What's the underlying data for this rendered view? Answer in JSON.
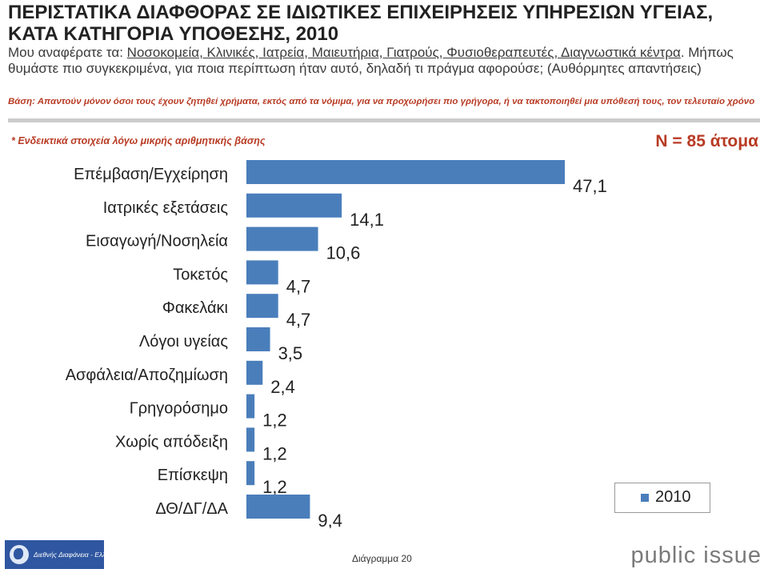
{
  "title": "ΠΕΡΙΣΤΑΤΙΚΑ ΔΙΑΦΘΟΡΑΣ ΣΕ ΙΔΙΩΤΙΚΕΣ ΕΠΙΧΕΙΡΗΣΕΙΣ ΥΠΗΡΕΣΙΩΝ ΥΓΕΙΑΣ, ΚΑΤΑ ΚΑΤΗΓΟΡΙΑ ΥΠΟΘΕΣΗΣ, 2010",
  "question": {
    "prefix": "Μου αναφέρατε τα: ",
    "underlined": "Νοσοκομεία, Κλινικές, Ιατρεία, Μαιευτήρια, Γιατρούς, Φυσιοθεραπευτές, Διαγνωστικά κέντρα",
    "suffix": ". Μήπως θυμάστε πιο συγκεκριμένα, για ποια περίπτωση ήταν αυτό, δηλαδή τι πράγμα αφορούσε; (Αυθόρμητες απαντήσεις)"
  },
  "base": "Βάση: Απαντούν μόνον όσοι τους έχουν ζητηθεί χρήματα, εκτός από τα νόμιμα, για να προχωρήσει πιο γρήγορα, ή να τακτοποιηθεί μια υπόθεσή τους, τον τελευταίο χρόνο",
  "note": "* Ενδεικτικά στοιχεία λόγω μικρής αριθμητικής βάσης",
  "sample": "Ν = 85 άτομα",
  "page_label": "Διάγραμμα 20",
  "logo_text": "Διεθνής Διαφάνεια - Ελλάς",
  "brand": "public issue",
  "colors": {
    "bar": "#4a7ebb",
    "accent": "#b83b24"
  },
  "chart_data": {
    "type": "bar",
    "orientation": "horizontal",
    "categories": [
      "Επέμβαση/Εγχείρηση",
      "Ιατρικές εξετάσεις",
      "Εισαγωγή/Νοσηλεία",
      "Τοκετός",
      "Φακελάκι",
      "Λόγοι υγείας",
      "Ασφάλεια/Αποζημίωση",
      "Γρηγορόσημο",
      "Χωρίς απόδειξη",
      "Επίσκεψη",
      "ΔΘ/ΔΓ/ΔΑ"
    ],
    "series": [
      {
        "name": "2010",
        "values": [
          47.1,
          14.1,
          10.6,
          4.7,
          4.7,
          3.5,
          2.4,
          1.2,
          1.2,
          1.2,
          9.4
        ]
      }
    ],
    "value_labels": [
      "47,1",
      "14,1",
      "10,6",
      "4,7",
      "4,7",
      "3,5",
      "2,4",
      "1,2",
      "1,2",
      "1,2",
      "9,4"
    ],
    "xlim": [
      0,
      50
    ],
    "legend": "bottom-right",
    "grid": false
  }
}
